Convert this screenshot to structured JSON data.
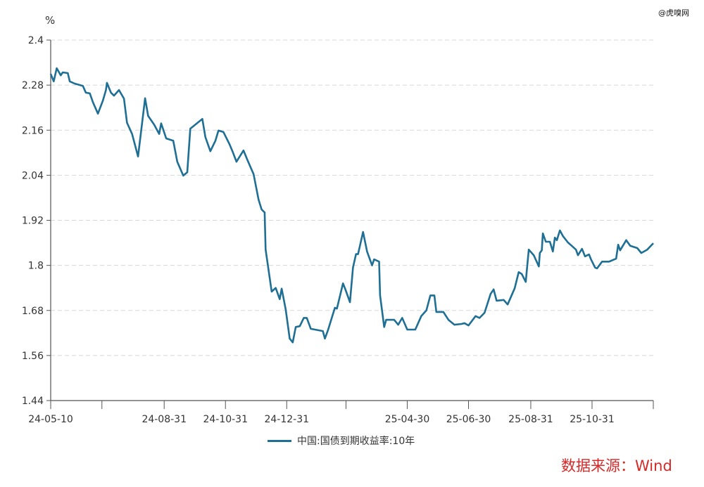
{
  "watermark": "@虎嗅网",
  "source": "数据来源：Wind",
  "chart_data": {
    "type": "line",
    "ylabel": "%",
    "ylim": [
      1.44,
      2.4
    ],
    "yticks": [
      "1.44",
      "1.56",
      "1.68",
      "1.8",
      "1.92",
      "2.04",
      "2.16",
      "2.28",
      "2.4"
    ],
    "xlim": [
      "2024-05-10",
      "2025-12-31"
    ],
    "xticks": [
      {
        "date": "2024-05-10",
        "label": "24-05-10"
      },
      {
        "date": "2024-06-30",
        "label": ""
      },
      {
        "date": "2024-08-31",
        "label": "24-08-31"
      },
      {
        "date": "2024-10-31",
        "label": "24-10-31"
      },
      {
        "date": "2024-12-31",
        "label": "24-12-31"
      },
      {
        "date": "2025-02-28",
        "label": ""
      },
      {
        "date": "2025-04-30",
        "label": "25-04-30"
      },
      {
        "date": "2025-06-30",
        "label": "25-06-30"
      },
      {
        "date": "2025-08-31",
        "label": "25-08-31"
      },
      {
        "date": "2025-10-31",
        "label": "25-10-31"
      },
      {
        "date": "2025-12-31",
        "label": ""
      }
    ],
    "grid": "horizontal-dashed",
    "legend_position": "bottom",
    "series": [
      {
        "name": "中国:国债到期收益率:10年",
        "color": "#1f6f94",
        "points": [
          [
            "2024-05-10",
            2.31
          ],
          [
            "2024-05-13",
            2.29
          ],
          [
            "2024-05-16",
            2.325
          ],
          [
            "2024-05-20",
            2.306
          ],
          [
            "2024-05-22",
            2.314
          ],
          [
            "2024-05-27",
            2.312
          ],
          [
            "2024-05-29",
            2.29
          ],
          [
            "2024-06-03",
            2.284
          ],
          [
            "2024-06-11",
            2.278
          ],
          [
            "2024-06-14",
            2.26
          ],
          [
            "2024-06-18",
            2.258
          ],
          [
            "2024-06-21",
            2.235
          ],
          [
            "2024-06-26",
            2.204
          ],
          [
            "2024-07-01",
            2.239
          ],
          [
            "2024-07-04",
            2.267
          ],
          [
            "2024-07-05",
            2.286
          ],
          [
            "2024-07-09",
            2.26
          ],
          [
            "2024-07-12",
            2.252
          ],
          [
            "2024-07-17",
            2.267
          ],
          [
            "2024-07-22",
            2.244
          ],
          [
            "2024-07-25",
            2.18
          ],
          [
            "2024-07-30",
            2.15
          ],
          [
            "2024-08-05",
            2.09
          ],
          [
            "2024-08-12",
            2.245
          ],
          [
            "2024-08-15",
            2.198
          ],
          [
            "2024-08-21",
            2.175
          ],
          [
            "2024-08-26",
            2.15
          ],
          [
            "2024-08-28",
            2.178
          ],
          [
            "2024-09-02",
            2.138
          ],
          [
            "2024-09-09",
            2.132
          ],
          [
            "2024-09-13",
            2.076
          ],
          [
            "2024-09-19",
            2.039
          ],
          [
            "2024-09-23",
            2.048
          ],
          [
            "2024-09-26",
            2.164
          ],
          [
            "2024-10-08",
            2.19
          ],
          [
            "2024-10-11",
            2.142
          ],
          [
            "2024-10-16",
            2.104
          ],
          [
            "2024-10-21",
            2.132
          ],
          [
            "2024-10-24",
            2.159
          ],
          [
            "2024-10-29",
            2.155
          ],
          [
            "2024-11-04",
            2.123
          ],
          [
            "2024-11-07",
            2.104
          ],
          [
            "2024-11-11",
            2.076
          ],
          [
            "2024-11-18",
            2.106
          ],
          [
            "2024-11-22",
            2.08
          ],
          [
            "2024-11-28",
            2.043
          ],
          [
            "2024-12-03",
            1.975
          ],
          [
            "2024-12-06",
            1.949
          ],
          [
            "2024-12-09",
            1.941
          ],
          [
            "2024-12-10",
            1.842
          ],
          [
            "2024-12-16",
            1.73
          ],
          [
            "2024-12-20",
            1.74
          ],
          [
            "2024-12-24",
            1.71
          ],
          [
            "2024-12-26",
            1.738
          ],
          [
            "2024-12-30",
            1.683
          ],
          [
            "2025-01-03",
            1.605
          ],
          [
            "2025-01-06",
            1.595
          ],
          [
            "2025-01-09",
            1.636
          ],
          [
            "2025-01-13",
            1.638
          ],
          [
            "2025-01-17",
            1.66
          ],
          [
            "2025-01-20",
            1.66
          ],
          [
            "2025-01-24",
            1.631
          ],
          [
            "2025-02-05",
            1.625
          ],
          [
            "2025-02-07",
            1.605
          ],
          [
            "2025-02-10",
            1.627
          ],
          [
            "2025-02-17",
            1.687
          ],
          [
            "2025-02-19",
            1.685
          ],
          [
            "2025-02-25",
            1.752
          ],
          [
            "2025-02-27",
            1.739
          ],
          [
            "2025-03-04",
            1.702
          ],
          [
            "2025-03-07",
            1.794
          ],
          [
            "2025-03-10",
            1.83
          ],
          [
            "2025-03-12",
            1.83
          ],
          [
            "2025-03-17",
            1.889
          ],
          [
            "2025-03-21",
            1.837
          ],
          [
            "2025-03-26",
            1.8
          ],
          [
            "2025-03-28",
            1.816
          ],
          [
            "2025-04-02",
            1.81
          ],
          [
            "2025-04-03",
            1.72
          ],
          [
            "2025-04-07",
            1.636
          ],
          [
            "2025-04-09",
            1.655
          ],
          [
            "2025-04-17",
            1.655
          ],
          [
            "2025-04-21",
            1.642
          ],
          [
            "2025-04-25",
            1.66
          ],
          [
            "2025-04-30",
            1.629
          ],
          [
            "2025-05-08",
            1.629
          ],
          [
            "2025-05-14",
            1.665
          ],
          [
            "2025-05-19",
            1.68
          ],
          [
            "2025-05-23",
            1.72
          ],
          [
            "2025-05-27",
            1.72
          ],
          [
            "2025-05-29",
            1.676
          ],
          [
            "2025-06-05",
            1.676
          ],
          [
            "2025-06-10",
            1.655
          ],
          [
            "2025-06-16",
            1.642
          ],
          [
            "2025-06-23",
            1.644
          ],
          [
            "2025-06-26",
            1.646
          ],
          [
            "2025-06-30",
            1.64
          ],
          [
            "2025-07-07",
            1.665
          ],
          [
            "2025-07-11",
            1.66
          ],
          [
            "2025-07-16",
            1.674
          ],
          [
            "2025-07-22",
            1.724
          ],
          [
            "2025-07-25",
            1.736
          ],
          [
            "2025-07-28",
            1.706
          ],
          [
            "2025-08-04",
            1.708
          ],
          [
            "2025-08-08",
            1.696
          ],
          [
            "2025-08-15",
            1.739
          ],
          [
            "2025-08-19",
            1.782
          ],
          [
            "2025-08-22",
            1.777
          ],
          [
            "2025-08-26",
            1.756
          ],
          [
            "2025-08-29",
            1.842
          ],
          [
            "2025-09-03",
            1.827
          ],
          [
            "2025-09-08",
            1.797
          ],
          [
            "2025-09-09",
            1.833
          ],
          [
            "2025-09-11",
            1.84
          ],
          [
            "2025-09-12",
            1.885
          ],
          [
            "2025-09-15",
            1.863
          ],
          [
            "2025-09-19",
            1.863
          ],
          [
            "2025-09-22",
            1.837
          ],
          [
            "2025-09-24",
            1.874
          ],
          [
            "2025-09-26",
            1.867
          ],
          [
            "2025-09-29",
            1.893
          ],
          [
            "2025-10-02",
            1.878
          ],
          [
            "2025-10-07",
            1.861
          ],
          [
            "2025-10-10",
            1.854
          ],
          [
            "2025-10-15",
            1.842
          ],
          [
            "2025-10-17",
            1.827
          ],
          [
            "2025-10-21",
            1.844
          ],
          [
            "2025-10-24",
            1.824
          ],
          [
            "2025-10-28",
            1.829
          ],
          [
            "2025-10-30",
            1.816
          ],
          [
            "2025-11-03",
            1.794
          ],
          [
            "2025-11-05",
            1.792
          ],
          [
            "2025-11-10",
            1.81
          ],
          [
            "2025-11-17",
            1.81
          ],
          [
            "2025-11-24",
            1.818
          ],
          [
            "2025-11-26",
            1.855
          ],
          [
            "2025-11-28",
            1.84
          ],
          [
            "2025-12-04",
            1.867
          ],
          [
            "2025-12-08",
            1.852
          ],
          [
            "2025-12-15",
            1.846
          ],
          [
            "2025-12-19",
            1.833
          ],
          [
            "2025-12-25",
            1.842
          ],
          [
            "2025-12-31",
            1.859
          ]
        ]
      }
    ]
  }
}
